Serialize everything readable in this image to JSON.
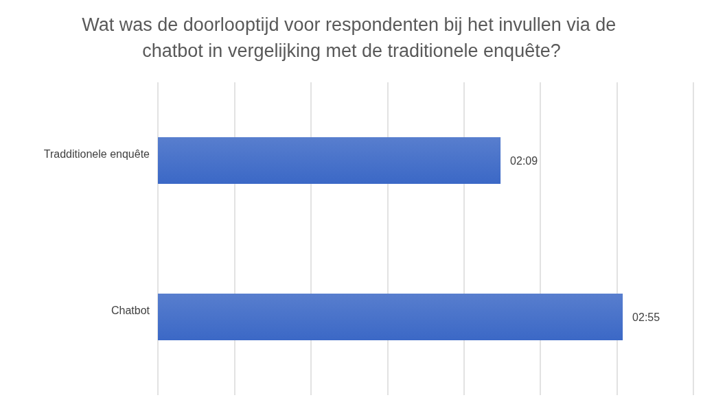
{
  "chart_data": {
    "type": "bar",
    "orientation": "horizontal",
    "title": "Wat was de doorlooptijd voor respondenten bij het invullen via de chatbot in vergelijking met de traditionele enquête?",
    "categories": [
      "Tradditionele enquête",
      "Chatbot"
    ],
    "values": [
      129,
      175
    ],
    "value_labels": [
      "02:09",
      "02:55"
    ],
    "color": "#3b68c6",
    "xlim": [
      0,
      201.6
    ],
    "xticks": [
      {
        "value": 0,
        "label": null
      },
      {
        "value": 28.8,
        "label": null
      },
      {
        "value": 57.6,
        "label": null
      },
      {
        "value": 86.4,
        "label": null
      },
      {
        "value": 115.2,
        "label": null
      },
      {
        "value": 144,
        "label": null
      },
      {
        "value": 172.8,
        "label": null
      },
      {
        "value": 201.6,
        "label": null
      }
    ],
    "tick_labels": "y",
    "grid": "x"
  }
}
